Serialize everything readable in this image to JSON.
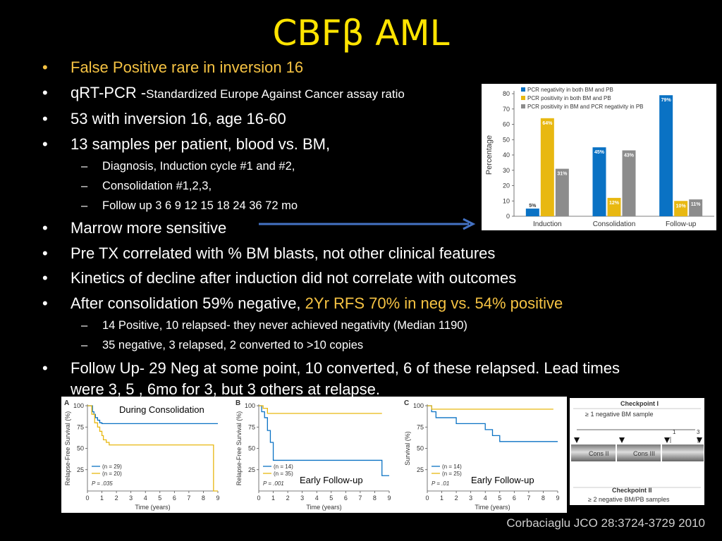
{
  "slide": {
    "title": "CBFβ AML",
    "bullets": {
      "b1": "False Positive rare in inversion 16",
      "b2_a": "qRT-PCR -",
      "b2_b": "Standardized Europe Against Cancer assay ratio",
      "b3": "53 with inversion 16, age 16-60",
      "b4": "13 samples per patient, blood vs. BM,",
      "b4_1": "Diagnosis, Induction cycle #1 and #2,",
      "b4_2": "Consolidation #1,2,3,",
      "b4_3": "Follow up  3 6 9 12 15 18 24 36 72 mo",
      "b5": "Marrow more sensitive",
      "b6": "Pre TX correlated with % BM blasts, not other clinical features",
      "b7": "Kinetics of  decline after induction  did not correlate with outcomes",
      "b8_a": "After consolidation 59%  negative, ",
      "b8_b": "2Yr RFS 70% in neg vs. 54% positive",
      "b8_1": "14 Positive, 10 relapsed- they never achieved negativity (Median 1190)",
      "b8_2": "35 negative, 3 relapsed, 2 converted to >10 copies",
      "b9": "Follow Up- 29 Neg at some point,  10 converted, 6 of these relapsed. Lead times were 3, 5 , 6mo for 3, but 3 others at relapse."
    },
    "citation": "Corbaciaglu JCO 28:3724-3729 2010"
  },
  "colors": {
    "title": "#ffe400",
    "highlight": "#f6c343",
    "blue": "#0a72c4",
    "gold": "#e8b811",
    "gray": "#8c8c8c",
    "arrow": "#4472c4"
  },
  "checkpoint": {
    "top_title": "Checkpoint I",
    "top_sub": "≥ 1 negative BM sample",
    "tick1": "1",
    "tick3": "3",
    "seg1": "Cons II",
    "seg2": "Cons III",
    "bot_title": "Checkpoint II",
    "bot_sub": "≥ 2 negative BM/PB samples"
  },
  "chart_data": [
    {
      "type": "bar",
      "categories": [
        "Induction",
        "Consolidation",
        "Follow-up"
      ],
      "ylabel": "Percentage",
      "ylim": [
        0,
        80
      ],
      "yticks": [
        0,
        10,
        20,
        30,
        40,
        50,
        60,
        70,
        80
      ],
      "series": [
        {
          "name": "PCR negativity in both BM and PB",
          "values": [
            5,
            45,
            79
          ],
          "labels": [
            "5%",
            "45%",
            "79%"
          ]
        },
        {
          "name": "PCR positivity in both BM and PB",
          "values": [
            64,
            12,
            10
          ],
          "labels": [
            "64%",
            "12%",
            "10%"
          ]
        },
        {
          "name": "PCR positivity in BM and PCR negativity in PB",
          "values": [
            31,
            43,
            11
          ],
          "labels": [
            "31%",
            "43%",
            "11%"
          ]
        }
      ]
    },
    {
      "type": "line",
      "panel": "A",
      "annotation": "During Consolidation",
      "ylabel": "Relapse-Free Survival (%)",
      "xlabel": "Time (years)",
      "xlim": [
        0,
        9
      ],
      "ylim": [
        0,
        100
      ],
      "xticks": [
        0,
        1,
        2,
        3,
        4,
        5,
        6,
        7,
        8,
        9
      ],
      "yticks": [
        25,
        50,
        75,
        100
      ],
      "p_value": "P = .035",
      "series": [
        {
          "name": "(n = 29)",
          "color": "blue",
          "x": [
            0,
            0.35,
            0.45,
            0.55,
            0.7,
            0.85,
            1.0,
            9.0
          ],
          "y": [
            100,
            93,
            90,
            86,
            83,
            80,
            79,
            79
          ]
        },
        {
          "name": "(n = 20)",
          "color": "gold",
          "x": [
            0,
            0.3,
            0.5,
            0.7,
            0.85,
            1.0,
            1.1,
            1.3,
            1.5,
            8.7,
            8.7,
            9.0
          ],
          "y": [
            100,
            90,
            80,
            75,
            70,
            65,
            60,
            57,
            54,
            54,
            0,
            0
          ]
        }
      ]
    },
    {
      "type": "line",
      "panel": "B",
      "annotation": "Early Follow-up",
      "ylabel": "Relapse-Free Survival (%)",
      "xlabel": "Time (years)",
      "xlim": [
        0,
        9
      ],
      "ylim": [
        0,
        100
      ],
      "xticks": [
        0,
        1,
        2,
        3,
        4,
        5,
        6,
        7,
        8,
        9
      ],
      "yticks": [
        25,
        50,
        75,
        100
      ],
      "p_value": "P = .001",
      "series": [
        {
          "name": "(n = 14)",
          "color": "blue",
          "x": [
            0,
            0.2,
            0.4,
            0.6,
            0.8,
            1.0,
            2.0,
            3.0,
            8.5,
            8.5,
            9.0
          ],
          "y": [
            100,
            93,
            86,
            71,
            57,
            36,
            36,
            36,
            36,
            18,
            18
          ]
        },
        {
          "name": "(n = 35)",
          "color": "gold",
          "x": [
            0,
            0.3,
            0.6,
            8.5
          ],
          "y": [
            100,
            97,
            91,
            91
          ]
        }
      ]
    },
    {
      "type": "line",
      "panel": "C",
      "annotation": "Early Follow-up",
      "ylabel": "Survival (%)",
      "xlabel": "Time (years)",
      "xlim": [
        0,
        9
      ],
      "ylim": [
        0,
        100
      ],
      "xticks": [
        0,
        1,
        2,
        3,
        4,
        5,
        6,
        7,
        8,
        9
      ],
      "yticks": [
        25,
        50,
        75,
        100
      ],
      "p_value": "P = .01",
      "series": [
        {
          "name": "(n = 14)",
          "color": "blue",
          "x": [
            0,
            0.3,
            0.6,
            1.0,
            2.0,
            3.5,
            4.0,
            4.5,
            5.0,
            9.0
          ],
          "y": [
            100,
            93,
            86,
            86,
            79,
            79,
            72,
            65,
            58,
            58
          ]
        },
        {
          "name": "(n = 25)",
          "color": "gold",
          "x": [
            0,
            0.3,
            0.5,
            8.7
          ],
          "y": [
            100,
            96,
            96,
            96
          ]
        }
      ]
    }
  ]
}
